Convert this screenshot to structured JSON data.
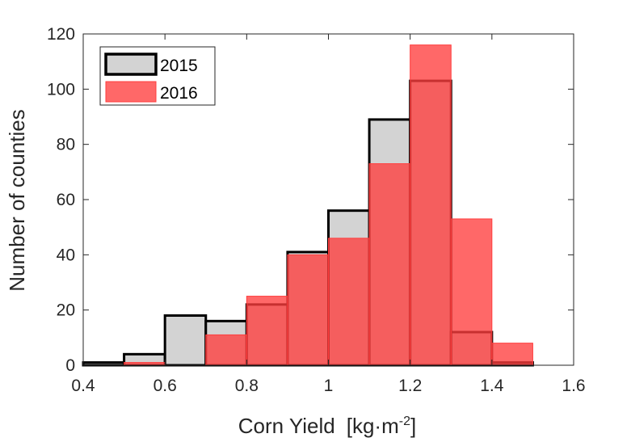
{
  "chart_data": {
    "type": "histogram",
    "xlabel": "Corn Yield",
    "xlabel_units": "[kg·m",
    "xlabel_exponent": "-2",
    "xlabel_units_close": "]",
    "ylabel": "Number of counties",
    "xlim": [
      0.4,
      1.6
    ],
    "ylim": [
      0,
      120
    ],
    "xticks": [
      "0.4",
      "0.6",
      "0.8",
      "1",
      "1.2",
      "1.4",
      "1.6"
    ],
    "yticks": [
      "0",
      "20",
      "40",
      "60",
      "80",
      "100",
      "120"
    ],
    "bin_edges": [
      0.4,
      0.5,
      0.6,
      0.7,
      0.8,
      0.9,
      1.0,
      1.1,
      1.2,
      1.3,
      1.4,
      1.5
    ],
    "legend_position": "top-left",
    "series": [
      {
        "name": "2015",
        "fill_color": "#d3d3d3",
        "edge_color": "#000000",
        "values": [
          1,
          4,
          18,
          16,
          22,
          41,
          56,
          89,
          103,
          12,
          1
        ]
      },
      {
        "name": "2016",
        "fill_color": "#ff3d3d",
        "fill_opacity": 0.78,
        "edge_color": "#ff3d3d",
        "values": [
          0,
          1,
          0,
          11,
          25,
          40,
          46,
          73,
          116,
          53,
          8
        ]
      }
    ]
  }
}
